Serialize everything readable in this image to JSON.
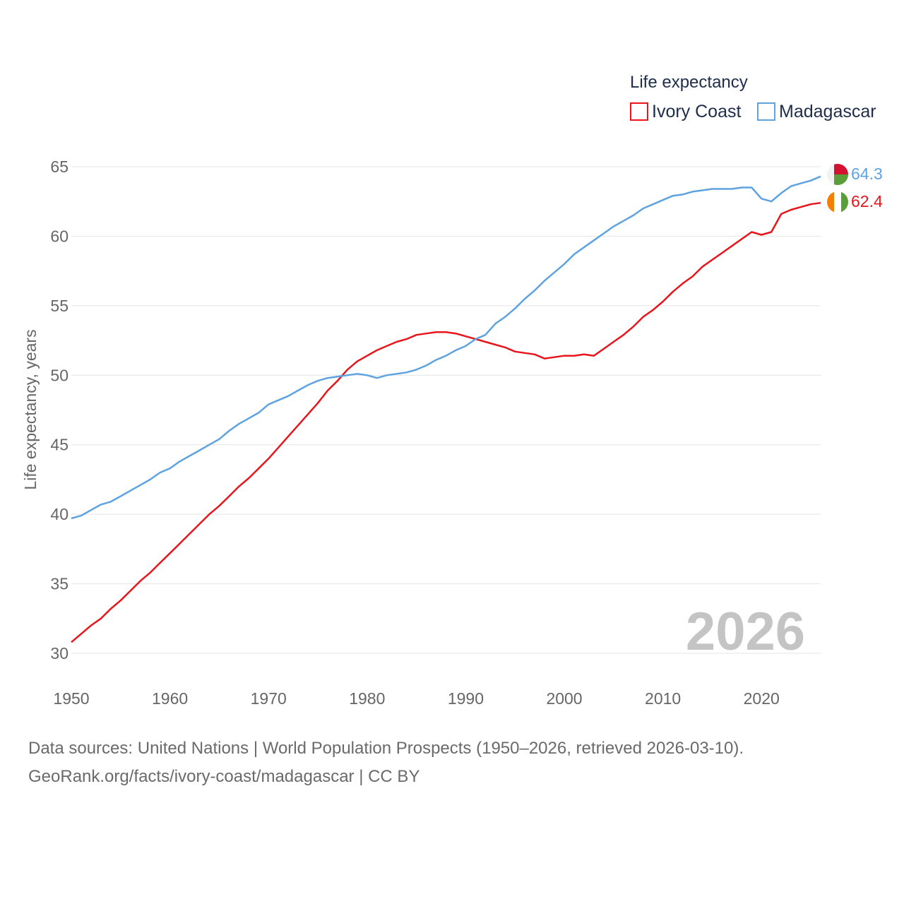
{
  "chart_data": {
    "type": "line",
    "legend_title": "Life expectancy",
    "ylabel": "Life expectancy, years",
    "xlabel": "",
    "xlim": [
      1950,
      2026
    ],
    "ylim": [
      30,
      65
    ],
    "x_ticks": [
      "1950",
      "1960",
      "1970",
      "1980",
      "1990",
      "2000",
      "2010",
      "2020"
    ],
    "y_ticks": [
      "30",
      "35",
      "40",
      "45",
      "50",
      "55",
      "60",
      "65"
    ],
    "grid": true,
    "legend_position": "top-right",
    "current_year_label": "2026",
    "x": [
      1950,
      1951,
      1952,
      1953,
      1954,
      1955,
      1956,
      1957,
      1958,
      1959,
      1960,
      1961,
      1962,
      1963,
      1964,
      1965,
      1966,
      1967,
      1968,
      1969,
      1970,
      1971,
      1972,
      1973,
      1974,
      1975,
      1976,
      1977,
      1978,
      1979,
      1980,
      1981,
      1982,
      1983,
      1984,
      1985,
      1986,
      1987,
      1988,
      1989,
      1990,
      1991,
      1992,
      1993,
      1994,
      1995,
      1996,
      1997,
      1998,
      1999,
      2000,
      2001,
      2002,
      2003,
      2004,
      2005,
      2006,
      2007,
      2008,
      2009,
      2010,
      2011,
      2012,
      2013,
      2014,
      2015,
      2016,
      2017,
      2018,
      2019,
      2020,
      2021,
      2022,
      2023,
      2024,
      2025,
      2026
    ],
    "series": [
      {
        "name": "Ivory Coast",
        "color": "#e8151b",
        "end_label": "62.4",
        "flag_icon": "ivory-coast-flag-icon",
        "values": [
          30.8,
          31.4,
          32.0,
          32.5,
          33.2,
          33.8,
          34.5,
          35.2,
          35.8,
          36.5,
          37.2,
          37.9,
          38.6,
          39.3,
          40.0,
          40.6,
          41.3,
          42.0,
          42.6,
          43.3,
          44.0,
          44.8,
          45.6,
          46.4,
          47.2,
          48.0,
          48.9,
          49.6,
          50.4,
          51.0,
          51.4,
          51.8,
          52.1,
          52.4,
          52.6,
          52.9,
          53.0,
          53.1,
          53.1,
          53.0,
          52.8,
          52.6,
          52.4,
          52.2,
          52.0,
          51.7,
          51.6,
          51.5,
          51.2,
          51.3,
          51.4,
          51.4,
          51.5,
          51.4,
          51.9,
          52.4,
          52.9,
          53.5,
          54.2,
          54.7,
          55.3,
          56.0,
          56.6,
          57.1,
          57.8,
          58.3,
          58.8,
          59.3,
          59.8,
          60.3,
          60.1,
          60.3,
          61.6,
          61.9,
          62.1,
          62.3,
          62.4
        ]
      },
      {
        "name": "Madagascar",
        "color": "#5ea3e0",
        "end_label": "64.3",
        "flag_icon": "madagascar-flag-icon",
        "values": [
          39.7,
          39.9,
          40.3,
          40.7,
          40.9,
          41.3,
          41.7,
          42.1,
          42.5,
          43.0,
          43.3,
          43.8,
          44.2,
          44.6,
          45.0,
          45.4,
          46.0,
          46.5,
          46.9,
          47.3,
          47.9,
          48.2,
          48.5,
          48.9,
          49.3,
          49.6,
          49.8,
          49.9,
          50.0,
          50.1,
          50.0,
          49.8,
          50.0,
          50.1,
          50.2,
          50.4,
          50.7,
          51.1,
          51.4,
          51.8,
          52.1,
          52.6,
          52.9,
          53.7,
          54.2,
          54.8,
          55.5,
          56.1,
          56.8,
          57.4,
          58.0,
          58.7,
          59.2,
          59.7,
          60.2,
          60.7,
          61.1,
          61.5,
          62.0,
          62.3,
          62.6,
          62.9,
          63.0,
          63.2,
          63.3,
          63.4,
          63.4,
          63.4,
          63.5,
          63.5,
          62.7,
          62.5,
          63.1,
          63.6,
          63.8,
          64.0,
          64.3
        ]
      }
    ]
  },
  "footer": {
    "line1": "Data sources: United Nations | World Population Prospects (1950–2026, retrieved 2026-03-10).",
    "line2": "GeoRank.org/facts/ivory-coast/madagascar | CC BY"
  }
}
